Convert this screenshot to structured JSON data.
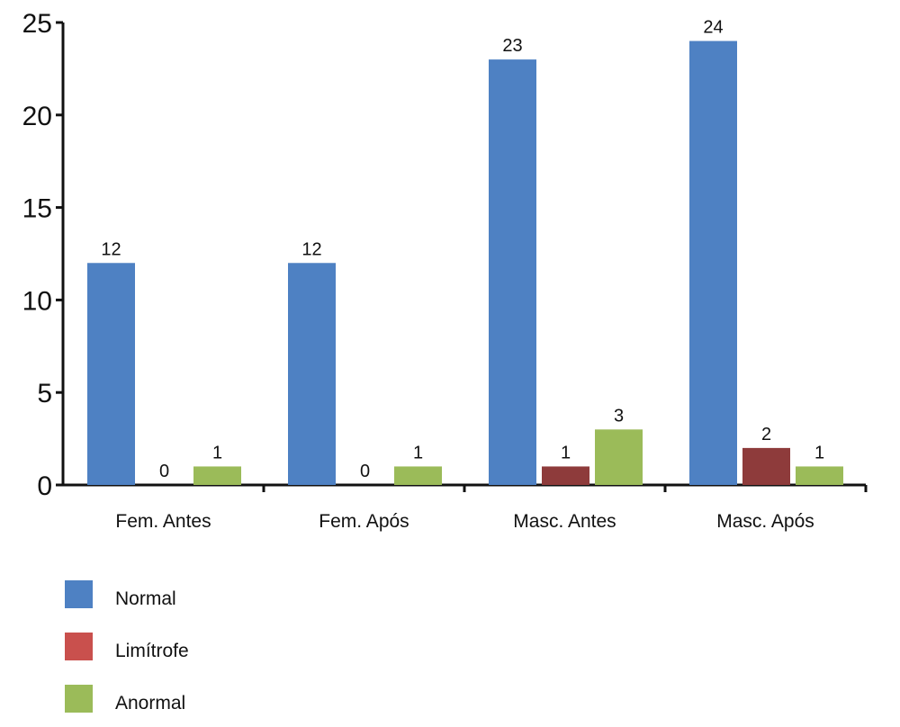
{
  "chart_data": {
    "type": "bar",
    "title": "",
    "xlabel": "",
    "ylabel": "",
    "categories": [
      "Fem. Antes",
      "Fem. Após",
      "Masc. Antes",
      "Masc. Após"
    ],
    "series": [
      {
        "name": "Normal",
        "values": [
          12,
          12,
          23,
          24
        ],
        "color": "#4E81C3"
      },
      {
        "name": "Limítrofe",
        "values": [
          0,
          0,
          1,
          2
        ],
        "color": "#8E3B3B",
        "legend_color": "#C9504D"
      },
      {
        "name": "Anormal",
        "values": [
          1,
          1,
          3,
          1
        ],
        "color": "#9BBB59"
      }
    ],
    "ylim": [
      0,
      25
    ],
    "yticks": [
      0,
      5,
      10,
      15,
      20,
      25
    ],
    "grid": false,
    "legend_position": "bottom-left",
    "data_labels": true
  }
}
